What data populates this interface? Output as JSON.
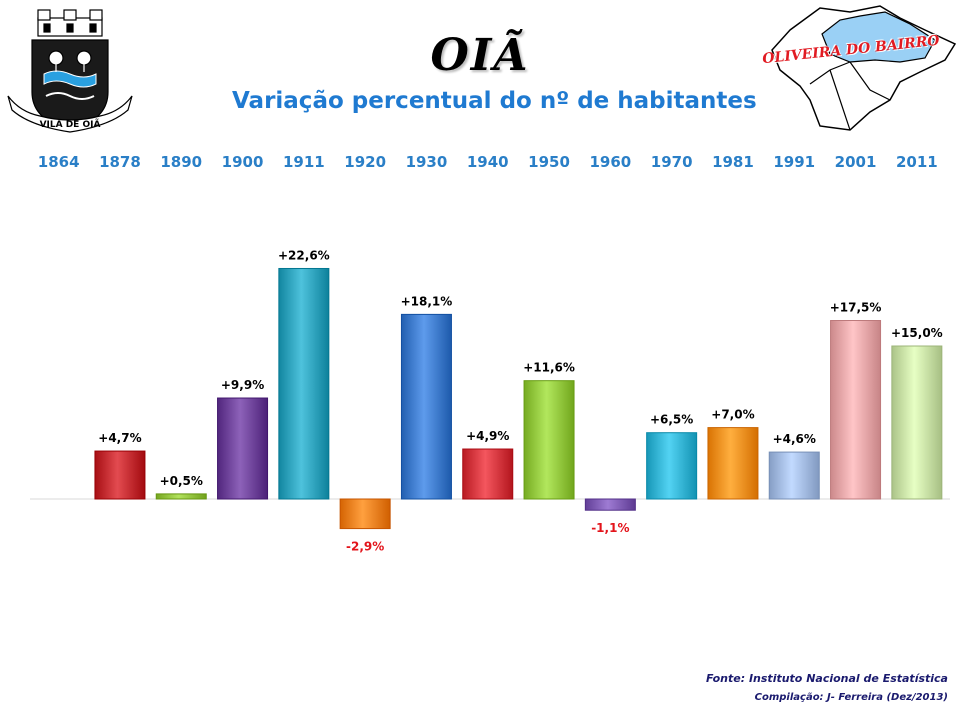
{
  "header": {
    "title": "OIÃ",
    "subtitle": "Variação percentual do nº de habitantes",
    "coat_caption": "VILA DE OIÃ",
    "map_label": "OLIVEIRA DO BAIRRO"
  },
  "footer": {
    "source": "Fonte: Instituto Nacional de Estatística",
    "compilation": "Compilação: J- Ferreira (Dez/2013)"
  },
  "chart_data": {
    "type": "bar",
    "title": "Variação percentual do nº de habitantes",
    "categories": [
      "1864",
      "1878",
      "1890",
      "1900",
      "1911",
      "1920",
      "1930",
      "1940",
      "1950",
      "1960",
      "1970",
      "1981",
      "1991",
      "2001",
      "2011"
    ],
    "values": [
      null,
      4.7,
      0.5,
      9.9,
      22.6,
      -2.9,
      18.1,
      4.9,
      11.6,
      -1.1,
      6.5,
      7.0,
      4.6,
      17.5,
      15.0
    ],
    "labels": [
      "",
      "+4,7%",
      "+0,5%",
      "+9,9%",
      "+22,6%",
      "-2,9%",
      "+18,1%",
      "+4,9%",
      "+11,6%",
      "-1,1%",
      "+6,5%",
      "+7,0%",
      "+4,6%",
      "+17,5%",
      "+15,0%"
    ],
    "colors": [
      "#cccccc",
      "#c0282d",
      "#8fbf3a",
      "#6a3f96",
      "#2b9fb9",
      "#ee7d1c",
      "#3b78c9",
      "#d1333b",
      "#8fc43a",
      "#7b58b0",
      "#30b0d0",
      "#f28c1c",
      "#9fb7de",
      "#e5a2a4",
      "#c4dca1"
    ],
    "positive_label_color": "#000000",
    "negative_label_color": "#e3141b",
    "xlabel": "",
    "ylabel": "",
    "ylim": [
      -3,
      23
    ],
    "grid": false,
    "axis_position": "top",
    "legend": "none"
  }
}
